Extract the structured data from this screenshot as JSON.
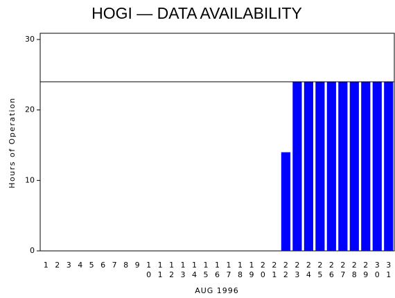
{
  "chart_data": {
    "type": "bar",
    "title": "HOGI — DATA AVAILABILITY",
    "x_label": "AUG 1996",
    "y_label": "Hours of Operation",
    "categories": [
      "1",
      "2",
      "3",
      "4",
      "5",
      "6",
      "7",
      "8",
      "9",
      "10",
      "11",
      "12",
      "13",
      "14",
      "15",
      "16",
      "17",
      "18",
      "19",
      "20",
      "21",
      "22",
      "23",
      "24",
      "25",
      "26",
      "27",
      "28",
      "29",
      "30",
      "31"
    ],
    "values": [
      0,
      0,
      0,
      0,
      0,
      0,
      0,
      0,
      0,
      0,
      0,
      0,
      0,
      0,
      0,
      0,
      0,
      0,
      0,
      0,
      0,
      14,
      24,
      24,
      24,
      24,
      24,
      24,
      24,
      24,
      24
    ],
    "color": "#0000ff",
    "reference_line": 24,
    "ylim": [
      0,
      30
    ],
    "yticks": [
      0,
      10,
      20,
      30
    ]
  }
}
